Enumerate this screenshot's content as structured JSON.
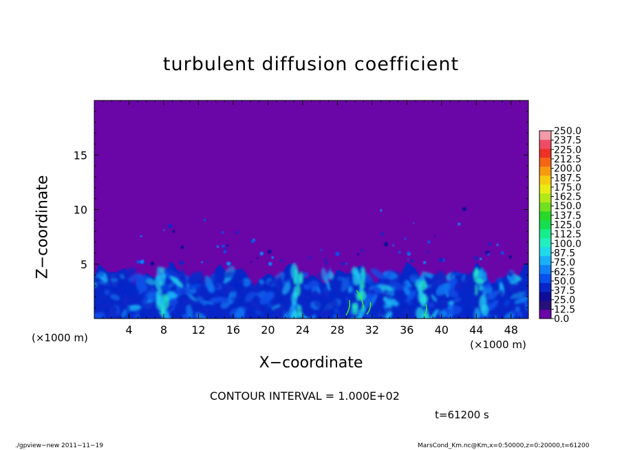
{
  "chart_data": {
    "type": "heatmap",
    "title": "turbulent diffusion coefficient",
    "xlabel": "X−coordinate",
    "ylabel": "Z−coordinate",
    "x_unit_label": "(×1000 m)",
    "xlim": [
      0,
      50
    ],
    "ylim": [
      0,
      20
    ],
    "x_ticks": [
      "4",
      "8",
      "12",
      "16",
      "20",
      "24",
      "28",
      "32",
      "36",
      "40",
      "44",
      "48"
    ],
    "y_ticks": [
      "5",
      "10",
      "15"
    ],
    "colorbar_levels": [
      "0.0",
      "12.5",
      "25.0",
      "37.5",
      "50.0",
      "62.5",
      "75.0",
      "87.5",
      "100.0",
      "112.5",
      "125.0",
      "137.5",
      "150.0",
      "162.5",
      "175.0",
      "187.5",
      "200.0",
      "212.5",
      "225.0",
      "237.5",
      "250.0"
    ],
    "colorbar_colors": [
      "#6a05a8",
      "#28107a",
      "#0e0c98",
      "#0826c8",
      "#0a50ea",
      "#1080f4",
      "#1ab0f6",
      "#22d8ec",
      "#22eec0",
      "#18ec8c",
      "#16de50",
      "#28d828",
      "#70e020",
      "#b0e81a",
      "#e8ec14",
      "#f6cc10",
      "#f79a12",
      "#f46616",
      "#ee3226",
      "#ee4c66",
      "#f29aa8"
    ],
    "background_color": "#6a05a8",
    "description_field": "field is near 0 above ~6 km; turbulent boundary layer below ~4.5 km with values mostly 12.5–75",
    "contour_interval": "CONTOUR INTERVAL = 1.000E+02",
    "time": "t=61200 s"
  },
  "footer": {
    "left": "./gpview−new   2011−11−19",
    "right": "MarsCond_Km.nc@Km,x=0:50000,z=0:20000,t=61200"
  }
}
